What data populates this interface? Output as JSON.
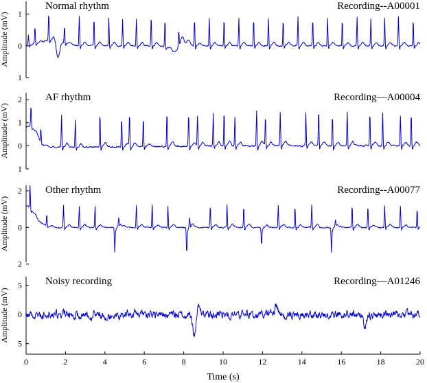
{
  "chart_data": [
    {
      "type": "line",
      "title": "Normal rhythm",
      "recording": "Recording--A00001",
      "ylabel": "Amplitude (mV)",
      "xlabel": "",
      "xlim": [
        0,
        20
      ],
      "ylim": [
        -1,
        1.4
      ],
      "yticks": [
        {
          "value": 1,
          "label": "1"
        },
        {
          "value": 0,
          "label": "0"
        },
        {
          "value": -1,
          "label": "1"
        }
      ],
      "baseline_noise": 0.03,
      "waves": [
        {
          "c": 1.35,
          "w": 0.5,
          "a": 0.2
        },
        {
          "c": 1.62,
          "w": 0.09,
          "a": -0.55
        },
        {
          "c": 7.5,
          "w": 0.22,
          "a": -0.2
        },
        {
          "c": 7.95,
          "w": 0.12,
          "a": 0.4
        },
        {
          "c": 8.08,
          "w": 0.1,
          "a": -0.35
        },
        {
          "c": 8.18,
          "w": 0.1,
          "a": 0.3
        }
      ],
      "beats": [
        {
          "t": 0.12,
          "r": 0.35
        },
        {
          "t": 0.45,
          "r": 0.55
        },
        {
          "t": 1.15,
          "r": 0.9
        },
        {
          "t": 1.95,
          "r": 0.55
        },
        {
          "t": 2.7,
          "r": 0.95
        },
        {
          "t": 3.45,
          "r": 0.9
        },
        {
          "t": 4.2,
          "r": 0.9
        },
        {
          "t": 4.9,
          "r": 0.85
        },
        {
          "t": 5.6,
          "r": 0.85
        },
        {
          "t": 6.35,
          "r": 0.95
        },
        {
          "t": 7.05,
          "r": 0.85
        },
        {
          "t": 7.75,
          "r": 0.5
        },
        {
          "t": 8.55,
          "r": 0.85
        },
        {
          "t": 9.3,
          "r": 0.9
        },
        {
          "t": 10.05,
          "r": 0.85
        },
        {
          "t": 10.8,
          "r": 0.9
        },
        {
          "t": 11.55,
          "r": 0.85
        },
        {
          "t": 12.3,
          "r": 0.9
        },
        {
          "t": 13.05,
          "r": 0.85
        },
        {
          "t": 13.8,
          "r": 0.95
        },
        {
          "t": 14.55,
          "r": 0.85
        },
        {
          "t": 15.3,
          "r": 0.9
        },
        {
          "t": 16.05,
          "r": 0.85
        },
        {
          "t": 16.8,
          "r": 0.9
        },
        {
          "t": 17.5,
          "r": 0.85
        },
        {
          "t": 18.2,
          "r": 0.9
        },
        {
          "t": 18.9,
          "r": 0.95
        },
        {
          "t": 19.65,
          "r": 0.85
        }
      ]
    },
    {
      "type": "line",
      "title": "AF rhythm",
      "recording": "Recording—A00004",
      "ylabel": "Amplitude (mV)",
      "xlabel": "",
      "xlim": [
        0,
        20
      ],
      "ylim": [
        -1,
        2.3
      ],
      "yticks": [
        {
          "value": 2,
          "label": "2"
        },
        {
          "value": 1,
          "label": "1"
        },
        {
          "value": 0,
          "label": "0"
        },
        {
          "value": -1,
          "label": "1"
        }
      ],
      "baseline_noise": 0.05,
      "waves": [
        {
          "c": 0.1,
          "w": 0.3,
          "a": 0.85
        },
        {
          "c": 0.5,
          "w": 0.2,
          "a": 0.25
        },
        {
          "c": 3.0,
          "w": 3.5,
          "a": -0.06
        }
      ],
      "beats": [
        {
          "t": 0.25,
          "r": 0.9
        },
        {
          "t": 0.75,
          "r": 0.6
        },
        {
          "t": 1.8,
          "r": 1.4
        },
        {
          "t": 2.5,
          "r": 1.2
        },
        {
          "t": 3.75,
          "r": 1.5
        },
        {
          "t": 4.85,
          "r": 1.3
        },
        {
          "t": 5.25,
          "r": 1.45
        },
        {
          "t": 5.95,
          "r": 1.25
        },
        {
          "t": 7.15,
          "r": 1.55
        },
        {
          "t": 8.25,
          "r": 1.45
        },
        {
          "t": 8.7,
          "r": 1.3
        },
        {
          "t": 9.5,
          "r": 1.45
        },
        {
          "t": 10.05,
          "r": 1.55
        },
        {
          "t": 10.6,
          "r": 1.3
        },
        {
          "t": 11.7,
          "r": 1.55
        },
        {
          "t": 12.15,
          "r": 1.3
        },
        {
          "t": 12.9,
          "r": 1.5
        },
        {
          "t": 14.2,
          "r": 1.45
        },
        {
          "t": 14.85,
          "r": 1.55
        },
        {
          "t": 15.55,
          "r": 1.4
        },
        {
          "t": 16.3,
          "r": 1.5
        },
        {
          "t": 17.45,
          "r": 1.45
        },
        {
          "t": 18.1,
          "r": 1.45
        },
        {
          "t": 19.0,
          "r": 1.3
        },
        {
          "t": 19.55,
          "r": 1.45
        }
      ]
    },
    {
      "type": "line",
      "title": "Other rhythm",
      "recording": "Recording--A00077",
      "ylabel": "Amplitude (mV)",
      "xlabel": "",
      "xlim": [
        0,
        20
      ],
      "ylim": [
        -1.9,
        2.3
      ],
      "yticks": [
        {
          "value": 2,
          "label": "2"
        },
        {
          "value": 0,
          "label": "0"
        },
        {
          "value": -2,
          "label": "2"
        }
      ],
      "baseline_noise": 0.05,
      "waves": [
        {
          "c": 0.05,
          "w": 0.25,
          "a": 1.1
        },
        {
          "c": 0.55,
          "w": 0.3,
          "a": 0.3
        }
      ],
      "beats": [
        {
          "t": 0.2,
          "r": 1.4
        },
        {
          "t": 1.05,
          "r": 0.7
        },
        {
          "t": 1.9,
          "r": 1.2
        },
        {
          "t": 2.7,
          "r": 1.2
        },
        {
          "t": 3.5,
          "r": 1.2
        },
        {
          "t": 4.5,
          "r": -1.35
        },
        {
          "t": 4.7,
          "r": 0.45
        },
        {
          "t": 5.6,
          "r": 1.25
        },
        {
          "t": 6.4,
          "r": 1.25
        },
        {
          "t": 7.2,
          "r": 1.2
        },
        {
          "t": 8.15,
          "r": -1.45
        },
        {
          "t": 8.3,
          "r": 0.5
        },
        {
          "t": 9.35,
          "r": 1.2
        },
        {
          "t": 10.2,
          "r": 1.25
        },
        {
          "t": 11.05,
          "r": 1.2
        },
        {
          "t": 11.95,
          "r": -0.95
        },
        {
          "t": 12.8,
          "r": 1.25
        },
        {
          "t": 13.65,
          "r": 1.2
        },
        {
          "t": 14.5,
          "r": 1.25
        },
        {
          "t": 15.5,
          "r": -1.35
        },
        {
          "t": 15.7,
          "r": 0.35
        },
        {
          "t": 16.55,
          "r": 1.25
        },
        {
          "t": 17.35,
          "r": 1.2
        },
        {
          "t": 18.2,
          "r": 1.25
        },
        {
          "t": 19.0,
          "r": 1.2
        },
        {
          "t": 19.85,
          "r": 1.05
        }
      ]
    },
    {
      "type": "line",
      "title": "Noisy recording",
      "recording": "Recording—A01246",
      "ylabel": "Amplitude (mV)",
      "xlabel": "Time (s)",
      "xlim": [
        0,
        20
      ],
      "ylim": [
        -6.8,
        6.5
      ],
      "yticks": [
        {
          "value": 5,
          "label": "5"
        },
        {
          "value": 0,
          "label": "0"
        },
        {
          "value": -5,
          "label": "5"
        }
      ],
      "xticks": [
        0,
        2,
        4,
        6,
        8,
        10,
        12,
        14,
        16,
        18,
        20
      ],
      "baseline_noise": 1.1,
      "waves": [
        {
          "c": 8.55,
          "w": 0.08,
          "a": -4.5
        },
        {
          "c": 8.7,
          "w": 0.1,
          "a": 2.0
        },
        {
          "c": 17.2,
          "w": 0.08,
          "a": -2.0
        },
        {
          "c": 12.7,
          "w": 0.08,
          "a": 1.5
        }
      ],
      "beats": []
    }
  ]
}
